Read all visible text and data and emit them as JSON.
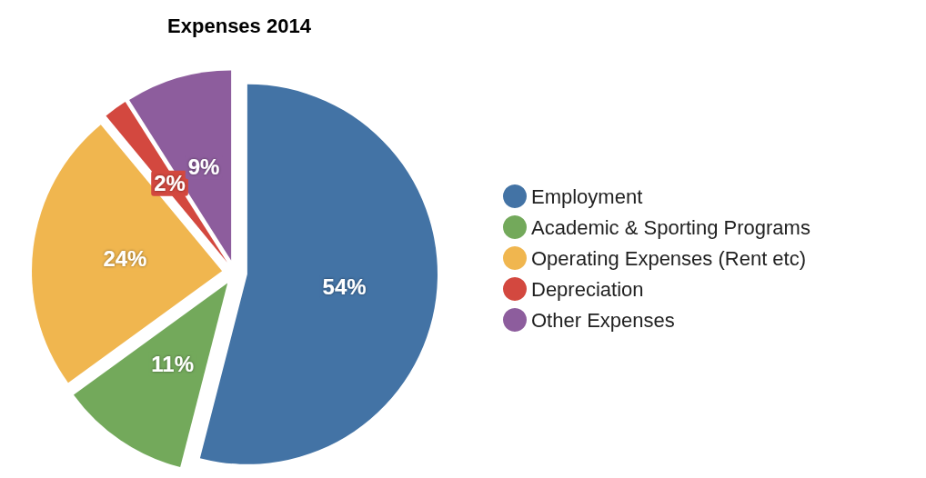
{
  "chart_data": {
    "type": "pie",
    "title": "Expenses 2014",
    "categories": [
      "Employment",
      "Academic & Sporting Programs",
      "Operating Expenses (Rent etc)",
      "Depreciation",
      "Other Expenses"
    ],
    "values": [
      54,
      11,
      24,
      2,
      9
    ],
    "colors": [
      "#4373a5",
      "#73a95b",
      "#f0b64f",
      "#d3483f",
      "#8d5d9d"
    ],
    "value_labels": [
      "54%",
      "11%",
      "24%",
      "2%",
      "9%"
    ],
    "legend": "right"
  }
}
